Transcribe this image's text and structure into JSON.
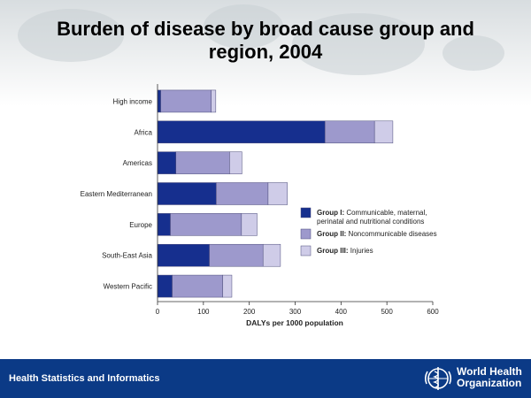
{
  "title_line1": "Burden of disease by broad cause group and",
  "title_line2": "region, 2004",
  "footer": {
    "left_text": "Health Statistics and Informatics",
    "org_line1": "World Health",
    "org_line2": "Organization"
  },
  "chart_data": {
    "type": "bar",
    "orientation": "horizontal",
    "stacked": true,
    "categories": [
      "High income",
      "Africa",
      "Americas",
      "Eastern Mediterranean",
      "Europe",
      "South-East Asia",
      "Western Pacific"
    ],
    "series": [
      {
        "name_bold": "Group I:",
        "name_rest_line1": " Communicable, maternal,",
        "name_rest_line2": "perinatal and nutritional conditions",
        "color": "#162f8e",
        "values": [
          7,
          365,
          40,
          128,
          28,
          113,
          32
        ]
      },
      {
        "name_bold": "Group II:",
        "name_rest_line1": " Noncommunicable diseases",
        "name_rest_line2": "",
        "color": "#9d99cc",
        "values": [
          110,
          108,
          117,
          113,
          155,
          117,
          110
        ]
      },
      {
        "name_bold": "Group III:",
        "name_rest_line1": " Injuries",
        "name_rest_line2": "",
        "color": "#cfcce8",
        "values": [
          10,
          40,
          27,
          42,
          34,
          38,
          20
        ]
      }
    ],
    "xlabel": "DALYs per 1000 population",
    "xticks": [
      0,
      100,
      200,
      300,
      400,
      500,
      600
    ],
    "xlim": [
      0,
      600
    ],
    "legend_position": "right"
  }
}
